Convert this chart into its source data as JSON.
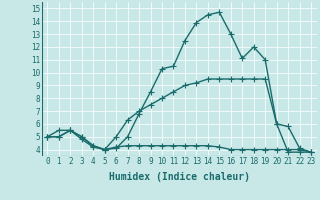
{
  "title": "",
  "xlabel": "Humidex (Indice chaleur)",
  "ylabel": "",
  "background_color": "#c8e8e8",
  "line_color": "#1a6b6b",
  "xlim": [
    -0.5,
    23.5
  ],
  "ylim": [
    3.5,
    15.5
  ],
  "xtick_labels": [
    "0",
    "1",
    "2",
    "3",
    "4",
    "5",
    "6",
    "7",
    "8",
    "9",
    "10",
    "11",
    "12",
    "13",
    "14",
    "15",
    "16",
    "17",
    "18",
    "19",
    "20",
    "21",
    "22",
    "23"
  ],
  "xtick_vals": [
    0,
    1,
    2,
    3,
    4,
    5,
    6,
    7,
    8,
    9,
    10,
    11,
    12,
    13,
    14,
    15,
    16,
    17,
    18,
    19,
    20,
    21,
    22,
    23
  ],
  "ytick_vals": [
    4,
    5,
    6,
    7,
    8,
    9,
    10,
    11,
    12,
    13,
    14,
    15
  ],
  "series": [
    {
      "x": [
        0,
        1,
        2,
        3,
        4,
        5,
        6,
        7,
        8,
        9,
        10,
        11,
        12,
        13,
        14,
        15,
        16,
        17,
        18,
        19,
        20,
        21,
        22,
        23
      ],
      "y": [
        5.0,
        5.5,
        5.5,
        4.8,
        4.2,
        4.0,
        4.1,
        5.0,
        6.8,
        8.5,
        10.3,
        10.5,
        12.5,
        13.9,
        14.5,
        14.7,
        13.0,
        11.1,
        12.0,
        11.0,
        6.0,
        3.8,
        3.8,
        3.8
      ]
    },
    {
      "x": [
        0,
        1,
        2,
        3,
        4,
        5,
        6,
        7,
        8,
        9,
        10,
        11,
        12,
        13,
        14,
        15,
        16,
        17,
        18,
        19,
        20,
        21,
        22,
        23
      ],
      "y": [
        5.0,
        5.0,
        5.5,
        5.0,
        4.3,
        4.0,
        5.0,
        6.3,
        7.0,
        7.5,
        8.0,
        8.5,
        9.0,
        9.2,
        9.5,
        9.5,
        9.5,
        9.5,
        9.5,
        9.5,
        6.0,
        5.8,
        4.1,
        3.8
      ]
    },
    {
      "x": [
        0,
        1,
        2,
        3,
        4,
        5,
        6,
        7,
        8,
        9,
        10,
        11,
        12,
        13,
        14,
        15,
        16,
        17,
        18,
        19,
        20,
        21,
        22,
        23
      ],
      "y": [
        5.0,
        5.0,
        5.5,
        5.0,
        4.3,
        4.0,
        4.2,
        4.3,
        4.3,
        4.3,
        4.3,
        4.3,
        4.3,
        4.3,
        4.3,
        4.2,
        4.0,
        4.0,
        4.0,
        4.0,
        4.0,
        4.0,
        4.0,
        3.8
      ]
    }
  ],
  "marker": "+",
  "marker_size": 4,
  "line_width": 1.0,
  "font_size_tick": 5.5,
  "font_size_xlabel": 7.0,
  "grid_color": "#ffffff",
  "grid_lw": 0.5
}
